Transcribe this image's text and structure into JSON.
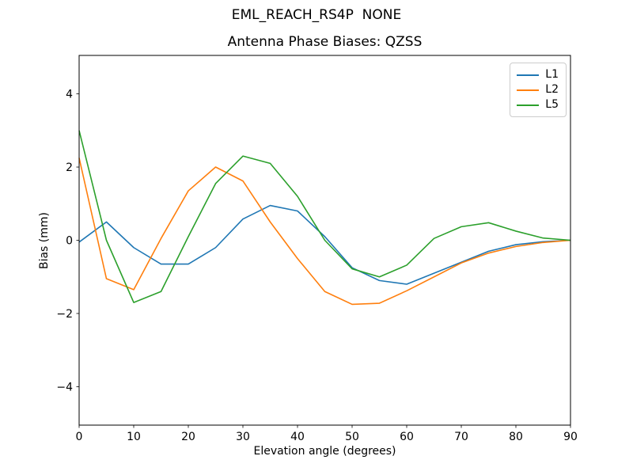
{
  "figure": {
    "suptitle": "EML_REACH_RS4P  NONE",
    "background_color": "#ffffff",
    "axis_color": "#000000",
    "legend_border_color": "#cccccc"
  },
  "chart_data": {
    "type": "line",
    "title": "Antenna Phase Biases: QZSS",
    "xlabel": "Elevation angle (degrees)",
    "ylabel": "Bias (mm)",
    "xlim": [
      0,
      90
    ],
    "ylim": [
      -5.05,
      5.05
    ],
    "xticks": [
      0,
      10,
      20,
      30,
      40,
      50,
      60,
      70,
      80,
      90
    ],
    "yticks": [
      -4,
      -2,
      0,
      2,
      4
    ],
    "grid": false,
    "legend_position": "upper right",
    "x": [
      0,
      5,
      10,
      15,
      20,
      25,
      30,
      35,
      40,
      45,
      50,
      55,
      60,
      65,
      70,
      75,
      80,
      85,
      90
    ],
    "series": [
      {
        "name": "L1",
        "color": "#1f77b4",
        "values": [
          -0.05,
          0.5,
          -0.2,
          -0.65,
          -0.65,
          -0.2,
          0.58,
          0.95,
          0.8,
          0.1,
          -0.75,
          -1.1,
          -1.2,
          -0.9,
          -0.6,
          -0.3,
          -0.12,
          -0.04,
          0.0
        ]
      },
      {
        "name": "L2",
        "color": "#ff7f0e",
        "values": [
          2.25,
          -1.05,
          -1.35,
          0.05,
          1.35,
          2.0,
          1.62,
          0.5,
          -0.5,
          -1.4,
          -1.75,
          -1.72,
          -1.38,
          -1.0,
          -0.62,
          -0.35,
          -0.17,
          -0.06,
          0.0
        ]
      },
      {
        "name": "L5",
        "color": "#2ca02c",
        "values": [
          3.0,
          0.0,
          -1.7,
          -1.4,
          0.1,
          1.55,
          2.3,
          2.1,
          1.2,
          0.0,
          -0.78,
          -1.0,
          -0.68,
          0.05,
          0.37,
          0.48,
          0.25,
          0.06,
          0.0
        ]
      }
    ]
  }
}
